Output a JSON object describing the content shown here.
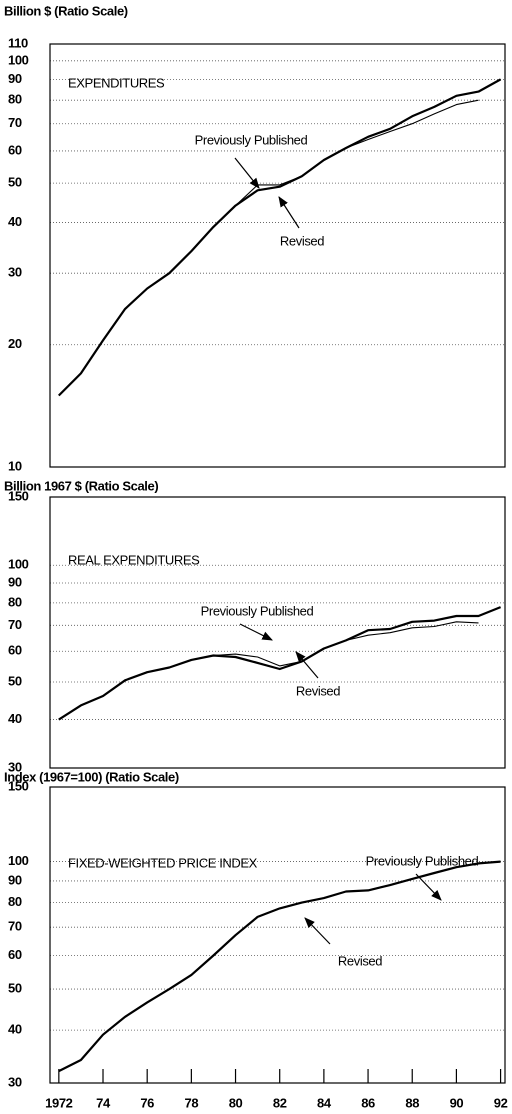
{
  "chart_data": [
    {
      "type": "line",
      "y_label": "Billion $ (Ratio Scale)",
      "title": "EXPENDITURES",
      "log_y": true,
      "grid": true,
      "x": [
        1972,
        1973,
        1974,
        1975,
        1976,
        1977,
        1978,
        1979,
        1980,
        1981,
        1982,
        1983,
        1984,
        1985,
        1986,
        1987,
        1988,
        1989,
        1990,
        1991,
        1992
      ],
      "xlim": [
        1971.6,
        1992.2
      ],
      "ylim": [
        10,
        110
      ],
      "yticks": [
        10,
        20,
        30,
        40,
        50,
        60,
        70,
        80,
        90,
        100,
        110
      ],
      "series": [
        {
          "name": "Revised",
          "color": "#000000",
          "values": [
            15,
            17,
            20.5,
            24.5,
            27.5,
            30,
            34,
            39,
            44,
            48,
            49,
            52,
            57,
            61,
            65,
            68,
            73,
            77,
            82,
            84,
            90
          ]
        },
        {
          "name": "Previously Published",
          "color": "#000000",
          "values": [
            15,
            17,
            20.5,
            24.5,
            27.5,
            30,
            34,
            39,
            44,
            49.5,
            49.5,
            52,
            57,
            61,
            64,
            67,
            70,
            74,
            78,
            80,
            null
          ]
        }
      ]
    },
    {
      "type": "line",
      "y_label": "Billion 1967 $ (Ratio Scale)",
      "title": "REAL EXPENDITURES",
      "log_y": true,
      "grid": true,
      "x": [
        1972,
        1973,
        1974,
        1975,
        1976,
        1977,
        1978,
        1979,
        1980,
        1981,
        1982,
        1983,
        1984,
        1985,
        1986,
        1987,
        1988,
        1989,
        1990,
        1991,
        1992
      ],
      "xlim": [
        1971.6,
        1992.2
      ],
      "ylim": [
        30,
        150
      ],
      "yticks": [
        30,
        40,
        50,
        60,
        70,
        80,
        90,
        100,
        150
      ],
      "series": [
        {
          "name": "Revised",
          "color": "#000000",
          "values": [
            40,
            43.5,
            46,
            50.5,
            53,
            54.5,
            57,
            58.5,
            58,
            56,
            54,
            56.5,
            61,
            64,
            68,
            68.5,
            71.5,
            72,
            74,
            74,
            78
          ]
        },
        {
          "name": "Previously Published",
          "color": "#000000",
          "values": [
            40,
            43.5,
            46,
            50.5,
            53,
            54.5,
            57,
            58.5,
            59,
            58,
            55,
            56.5,
            61,
            64,
            66,
            67,
            69,
            69.5,
            71.5,
            71,
            null
          ]
        }
      ]
    },
    {
      "type": "line",
      "y_label": "Index (1967=100) (Ratio Scale)",
      "title": "FIXED-WEIGHTED PRICE INDEX",
      "log_y": true,
      "grid": true,
      "x": [
        1972,
        1973,
        1974,
        1975,
        1976,
        1977,
        1978,
        1979,
        1980,
        1981,
        1982,
        1983,
        1984,
        1985,
        1986,
        1987,
        1988,
        1989,
        1990,
        1991,
        1992
      ],
      "xlim": [
        1971.6,
        1992.2
      ],
      "xticks": [
        {
          "value": 1972,
          "label": "1972"
        },
        {
          "value": 1974,
          "label": "74"
        },
        {
          "value": 1976,
          "label": "76"
        },
        {
          "value": 1978,
          "label": "78"
        },
        {
          "value": 1980,
          "label": "80"
        },
        {
          "value": 1982,
          "label": "82"
        },
        {
          "value": 1984,
          "label": "84"
        },
        {
          "value": 1986,
          "label": "86"
        },
        {
          "value": 1988,
          "label": "88"
        },
        {
          "value": 1990,
          "label": "90"
        },
        {
          "value": 1992,
          "label": "92"
        }
      ],
      "ylim": [
        30,
        150
      ],
      "yticks": [
        30,
        40,
        50,
        60,
        70,
        80,
        90,
        100,
        150
      ],
      "series": [
        {
          "name": "Revised",
          "color": "#000000",
          "values": [
            32,
            34,
            39,
            43,
            46.5,
            50,
            54,
            60,
            67,
            74,
            77.5,
            80,
            82,
            85,
            85.5,
            88,
            91,
            94,
            97,
            99,
            100
          ]
        },
        {
          "name": "Previously Published",
          "color": "#000000",
          "values": [
            32,
            34,
            39,
            43,
            46.5,
            50,
            54,
            60,
            67,
            74,
            77.5,
            80,
            82,
            85,
            85.5,
            88,
            91,
            94,
            97,
            99,
            null
          ]
        }
      ]
    }
  ]
}
